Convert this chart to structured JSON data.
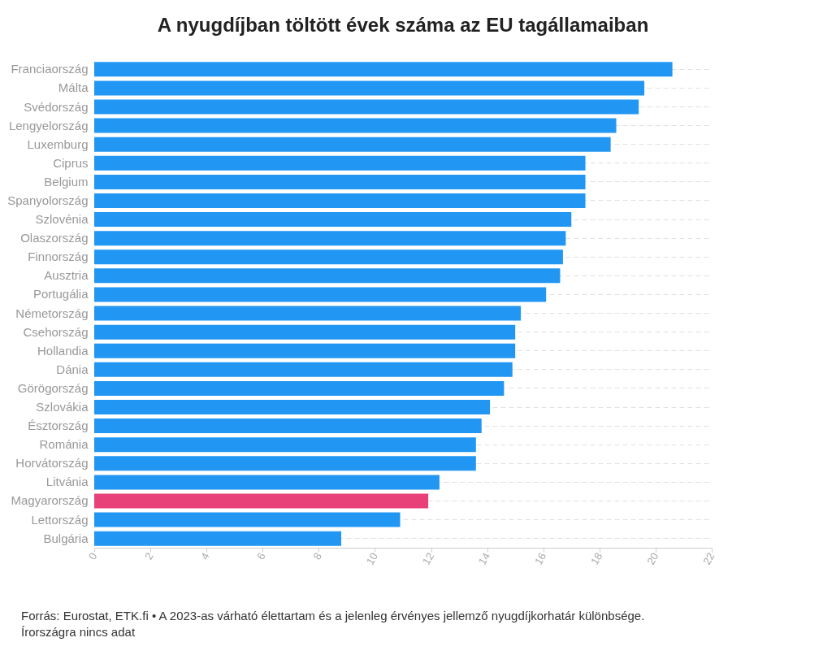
{
  "chart_data": {
    "type": "bar",
    "orientation": "horizontal",
    "title": "A nyugdíjban töltött évek száma az EU tagállamaiban",
    "categories": [
      "Franciaország",
      "Málta",
      "Svédország",
      "Lengyelország",
      "Luxemburg",
      "Ciprus",
      "Belgium",
      "Spanyolország",
      "Szlovénia",
      "Olaszország",
      "Finnország",
      "Ausztria",
      "Portugália",
      "Németország",
      "Csehország",
      "Hollandia",
      "Dánia",
      "Görögország",
      "Szlovákia",
      "Észtország",
      "Románia",
      "Horvátország",
      "Litvánia",
      "Magyarország",
      "Lettország",
      "Bulgária"
    ],
    "values": [
      20.6,
      19.6,
      19.4,
      18.6,
      18.4,
      17.5,
      17.5,
      17.5,
      17.0,
      16.8,
      16.7,
      16.6,
      16.1,
      15.2,
      15.0,
      15.0,
      14.9,
      14.6,
      14.1,
      13.8,
      13.6,
      13.6,
      12.3,
      11.9,
      10.9,
      8.8
    ],
    "colors": [
      "#2196f3",
      "#2196f3",
      "#2196f3",
      "#2196f3",
      "#2196f3",
      "#2196f3",
      "#2196f3",
      "#2196f3",
      "#2196f3",
      "#2196f3",
      "#2196f3",
      "#2196f3",
      "#2196f3",
      "#2196f3",
      "#2196f3",
      "#2196f3",
      "#2196f3",
      "#2196f3",
      "#2196f3",
      "#2196f3",
      "#2196f3",
      "#2196f3",
      "#2196f3",
      "#e8417a",
      "#2196f3",
      "#2196f3"
    ],
    "xlim": [
      0,
      22
    ],
    "xticks": [
      0,
      2,
      4,
      6,
      8,
      10,
      12,
      14,
      16,
      18,
      20,
      22
    ],
    "grid": "y",
    "annotations": [
      "Forrás: Eurostat, ETK.fi • A 2023-as várható élettartam és a jelenleg érvényes jellemző nyugdíjkorhatár különbsége. Írországra nincs adat"
    ]
  }
}
